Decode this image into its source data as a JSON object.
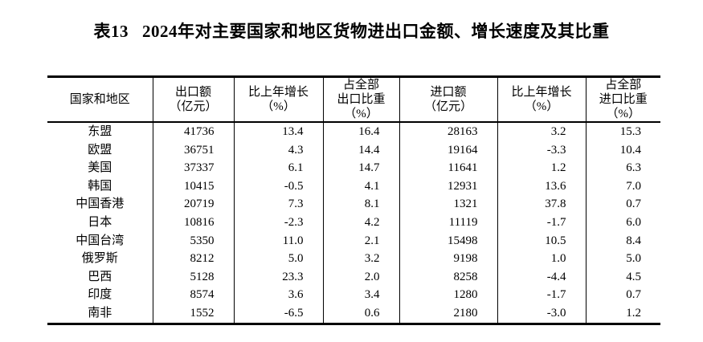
{
  "page": {
    "background": "#ffffff",
    "text_color": "#000000",
    "border_color": "#000000"
  },
  "title": {
    "prefix": "表13",
    "text": "2024年对主要国家和地区货物进出口金额、增长速度及其比重"
  },
  "table": {
    "headers": [
      "国家和地区",
      "出口额\n（亿元）",
      "比上年增长\n（%）",
      "占全部\n出口比重\n（%）",
      "进口额\n（亿元）",
      "比上年增长\n（%）",
      "占全部\n进口比重\n（%）"
    ],
    "column_keys": [
      "country",
      "export-value",
      "export-growth",
      "export-share",
      "import-value",
      "import-growth",
      "import-share"
    ],
    "rows": [
      [
        "东盟",
        "41736",
        "13.4",
        "16.4",
        "28163",
        "3.2",
        "15.3"
      ],
      [
        "欧盟",
        "36751",
        "4.3",
        "14.4",
        "19164",
        "-3.3",
        "10.4"
      ],
      [
        "美国",
        "37337",
        "6.1",
        "14.7",
        "11641",
        "1.2",
        "6.3"
      ],
      [
        "韩国",
        "10415",
        "-0.5",
        "4.1",
        "12931",
        "13.6",
        "7.0"
      ],
      [
        "中国香港",
        "20719",
        "7.3",
        "8.1",
        "1321",
        "37.8",
        "0.7"
      ],
      [
        "日本",
        "10816",
        "-2.3",
        "4.2",
        "11119",
        "-1.7",
        "6.0"
      ],
      [
        "中国台湾",
        "5350",
        "11.0",
        "2.1",
        "15498",
        "10.5",
        "8.4"
      ],
      [
        "俄罗斯",
        "8212",
        "5.0",
        "3.2",
        "9198",
        "1.0",
        "5.0"
      ],
      [
        "巴西",
        "5128",
        "23.3",
        "2.0",
        "8258",
        "-4.4",
        "4.5"
      ],
      [
        "印度",
        "8574",
        "3.6",
        "3.4",
        "1280",
        "-1.7",
        "0.7"
      ],
      [
        "南非",
        "1552",
        "-6.5",
        "0.6",
        "2180",
        "-3.0",
        "1.2"
      ]
    ]
  }
}
